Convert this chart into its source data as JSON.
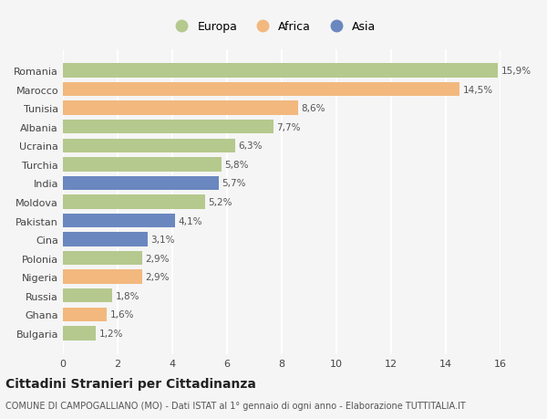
{
  "categories": [
    "Bulgaria",
    "Ghana",
    "Russia",
    "Nigeria",
    "Polonia",
    "Cina",
    "Pakistan",
    "Moldova",
    "India",
    "Turchia",
    "Ucraina",
    "Albania",
    "Tunisia",
    "Marocco",
    "Romania"
  ],
  "values": [
    1.2,
    1.6,
    1.8,
    2.9,
    2.9,
    3.1,
    4.1,
    5.2,
    5.7,
    5.8,
    6.3,
    7.7,
    8.6,
    14.5,
    15.9
  ],
  "labels": [
    "1,2%",
    "1,6%",
    "1,8%",
    "2,9%",
    "2,9%",
    "3,1%",
    "4,1%",
    "5,2%",
    "5,7%",
    "5,8%",
    "6,3%",
    "7,7%",
    "8,6%",
    "14,5%",
    "15,9%"
  ],
  "continents": [
    "Europa",
    "Africa",
    "Europa",
    "Africa",
    "Europa",
    "Asia",
    "Asia",
    "Europa",
    "Asia",
    "Europa",
    "Europa",
    "Europa",
    "Africa",
    "Africa",
    "Europa"
  ],
  "colors": {
    "Europa": "#b5c98e",
    "Africa": "#f2b87e",
    "Asia": "#6b87c0"
  },
  "title": "Cittadini Stranieri per Cittadinanza",
  "subtitle": "COMUNE DI CAMPOGALLIANO (MO) - Dati ISTAT al 1° gennaio di ogni anno - Elaborazione TUTTITALIA.IT",
  "xlim": [
    0,
    16
  ],
  "xticks": [
    0,
    2,
    4,
    6,
    8,
    10,
    12,
    14,
    16
  ],
  "background_color": "#f5f5f5",
  "grid_color": "#ffffff",
  "bar_height": 0.75,
  "title_fontsize": 10,
  "subtitle_fontsize": 7,
  "label_fontsize": 7.5,
  "tick_fontsize": 8,
  "legend_fontsize": 9
}
